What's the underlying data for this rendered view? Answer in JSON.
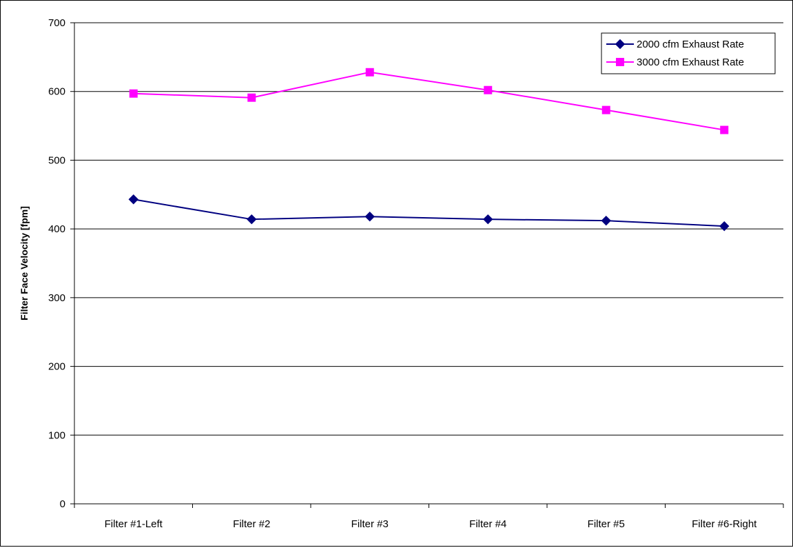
{
  "chart_data": {
    "type": "line",
    "title": "",
    "xlabel": "",
    "ylabel": "Filter Face Velocity [fpm]",
    "categories": [
      "Filter #1-Left",
      "Filter #2",
      "Filter #3",
      "Filter #4",
      "Filter #5",
      "Filter #6-Right"
    ],
    "yticks": [
      "0",
      "100",
      "200",
      "300",
      "400",
      "500",
      "600",
      "700"
    ],
    "ylim": [
      0,
      700
    ],
    "grid": "horizontal",
    "legend_position": "top-right",
    "series": [
      {
        "name": "2000 cfm Exhaust Rate",
        "values": [
          443,
          414,
          418,
          414,
          412,
          404
        ],
        "color": "#000080",
        "marker": "diamond"
      },
      {
        "name": "3000 cfm Exhaust Rate",
        "values": [
          597,
          591,
          628,
          602,
          573,
          544
        ],
        "color": "#FF00FF",
        "marker": "square"
      }
    ]
  }
}
